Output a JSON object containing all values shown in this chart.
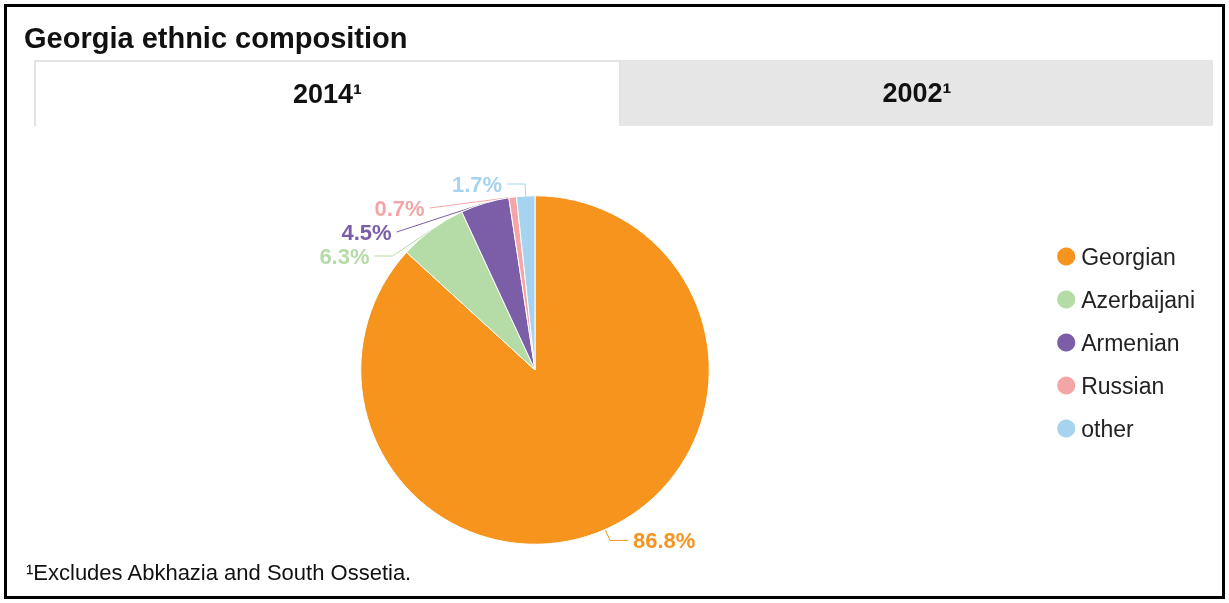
{
  "chart_data": {
    "type": "pie",
    "title": "Georgia ethnic composition",
    "categories": [
      "Georgian",
      "Azerbaijani",
      "Armenian",
      "Russian",
      "other"
    ],
    "values": [
      86.8,
      6.3,
      4.5,
      0.7,
      1.7
    ],
    "value_labels": [
      "86.8%",
      "6.3%",
      "4.5%",
      "0.7%",
      "1.7%"
    ],
    "colors": [
      "#f7941d",
      "#b5dba6",
      "#7b5ea7",
      "#f4a6a6",
      "#a6d3f0"
    ],
    "legend": "right",
    "annotations": [
      "2014¹",
      "2002¹",
      "¹Excludes Abkhazia and South Ossetia."
    ]
  }
}
